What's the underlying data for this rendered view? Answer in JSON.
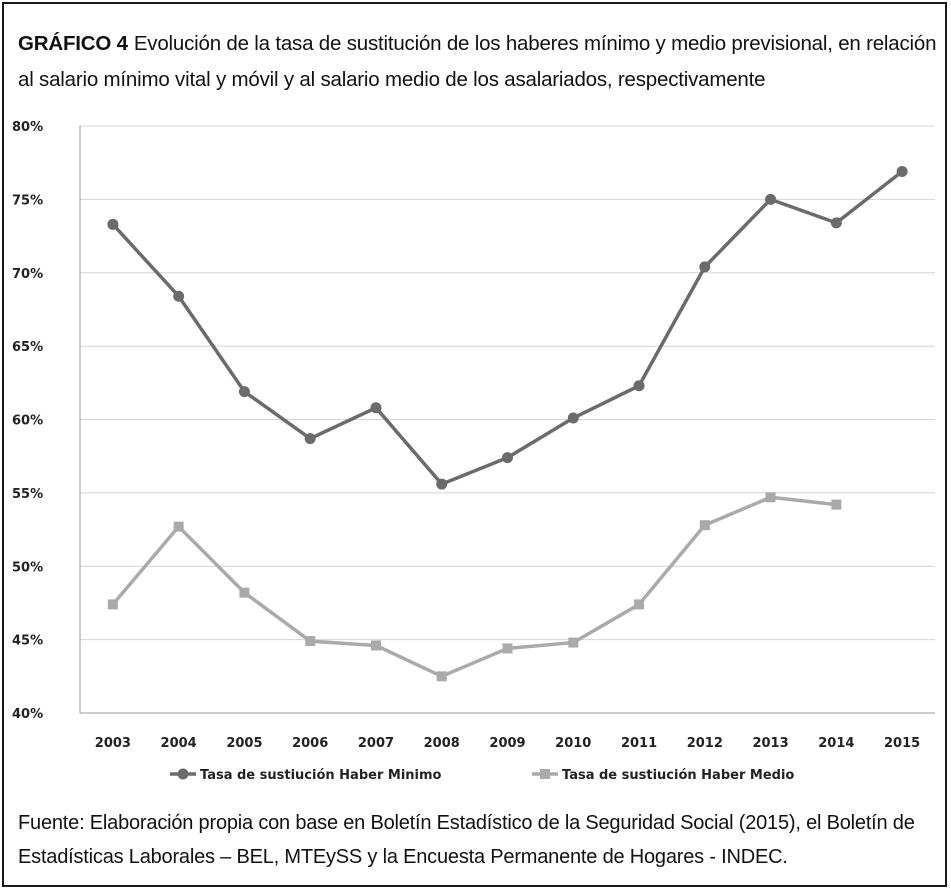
{
  "figure": {
    "label": "GRÁFICO 4",
    "title": "Evolución de la tasa de sustitución de los haberes mínimo y medio previsional, en relación al salario mínimo vital y móvil y al salario medio de los asalariados, respectivamente",
    "source": "Fuente: Elaboración propia con base en Boletín Estadístico de la Seguridad Social (2015), el Boletín de Estadísticas Laborales – BEL, MTEySS y la Encuesta Permanente de Hogares - INDEC."
  },
  "chart_data": {
    "type": "line",
    "title": "",
    "xlabel": "",
    "ylabel": "",
    "categories": [
      "2003",
      "2004",
      "2005",
      "2006",
      "2007",
      "2008",
      "2009",
      "2010",
      "2011",
      "2012",
      "2013",
      "2014",
      "2015"
    ],
    "yticks": [
      "40%",
      "45%",
      "50%",
      "55%",
      "60%",
      "65%",
      "70%",
      "75%",
      "80%"
    ],
    "ylim": [
      40,
      80
    ],
    "grid": true,
    "legend_position": "bottom",
    "series": [
      {
        "name": "Tasa de sustiución Haber Minimo",
        "color": "#6b6b6b",
        "marker": "circle",
        "values": [
          73.3,
          68.4,
          61.9,
          58.7,
          60.8,
          55.6,
          57.4,
          60.1,
          62.3,
          70.4,
          75.0,
          73.4,
          76.9
        ]
      },
      {
        "name": "Tasa de sustiución Haber Medio",
        "color": "#aaaaaa",
        "marker": "square",
        "values": [
          47.4,
          52.7,
          48.2,
          44.9,
          44.6,
          42.5,
          44.4,
          44.8,
          47.4,
          52.8,
          54.7,
          54.2,
          null
        ]
      }
    ]
  }
}
